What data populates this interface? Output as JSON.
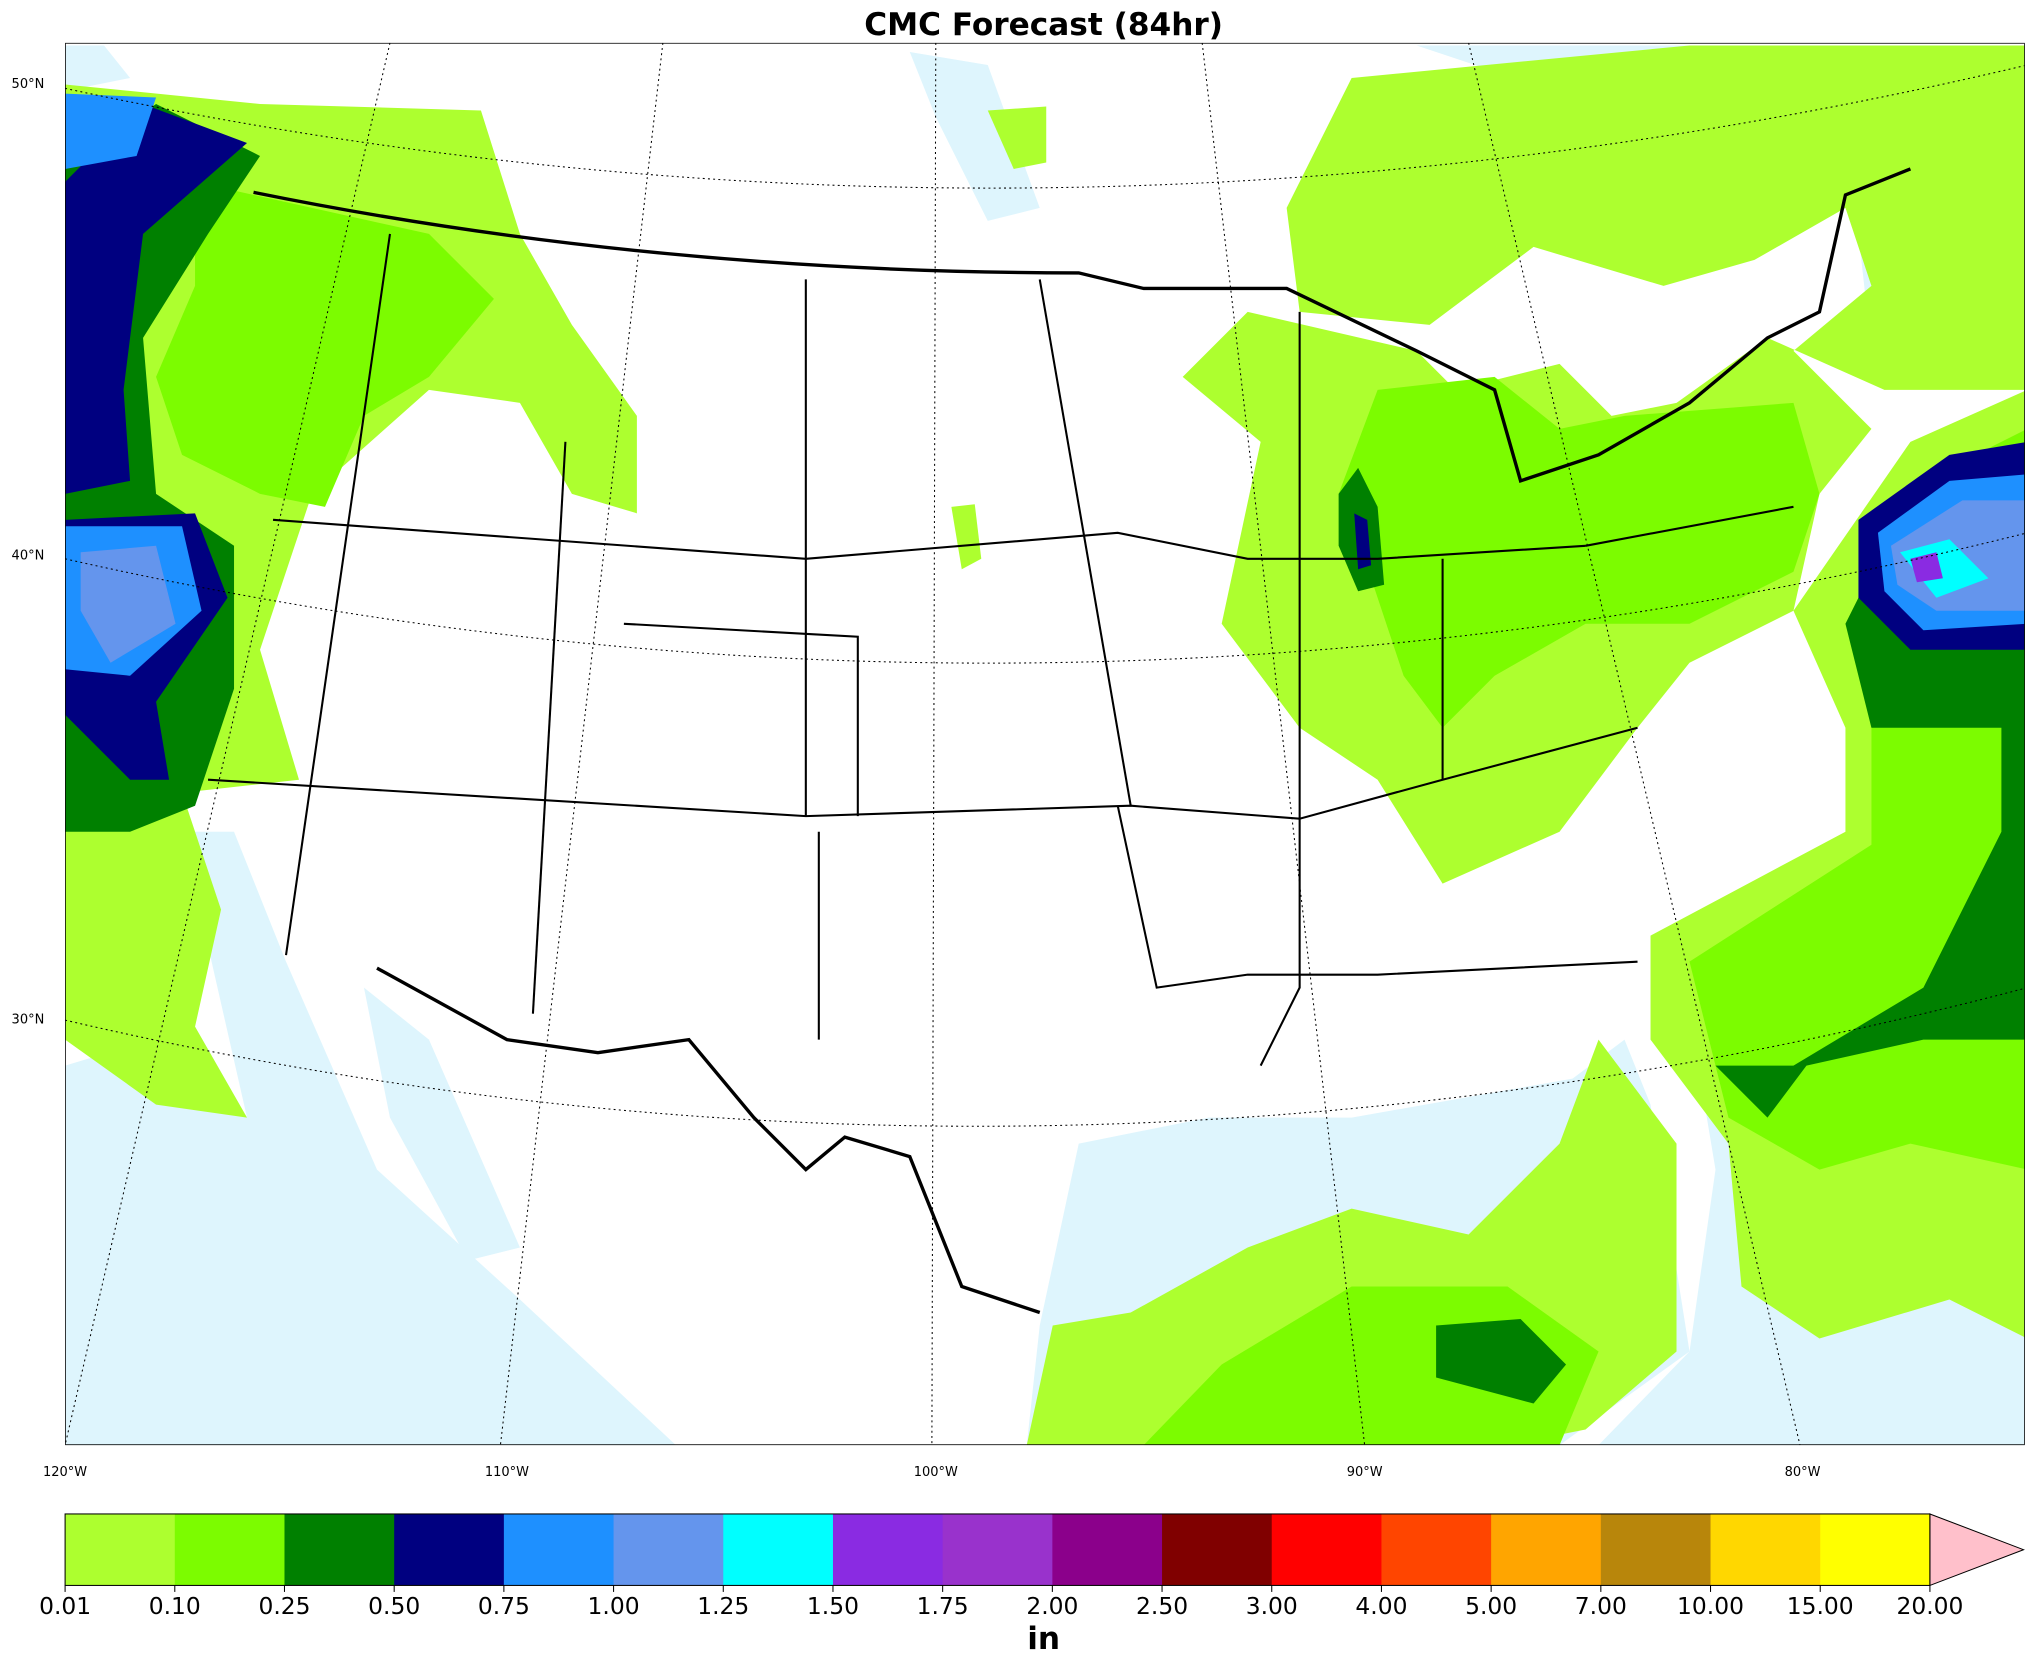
{
  "header": {
    "title": "CMC Forecast (84hr)"
  },
  "map": {
    "lat_labels": [
      "50°N",
      "40°N",
      "30°N"
    ],
    "lon_labels": [
      "120°W",
      "110°W",
      "100°W",
      "90°W",
      "80°W"
    ]
  },
  "colorbar": {
    "ticks": [
      "0.01",
      "0.10",
      "0.25",
      "0.50",
      "0.75",
      "1.00",
      "1.25",
      "1.50",
      "1.75",
      "2.00",
      "2.50",
      "3.00",
      "4.00",
      "5.00",
      "7.00",
      "10.00",
      "15.00",
      "20.00"
    ],
    "colors": [
      "#adff2f",
      "#7cfc00",
      "#008000",
      "#000080",
      "#1e90ff",
      "#6495ed",
      "#00ffff",
      "#8a2be2",
      "#9932cc",
      "#8b008b",
      "#800000",
      "#ff0000",
      "#ff4500",
      "#ffa500",
      "#b8860b",
      "#ffd700",
      "#ffff00"
    ],
    "extend_color": "#ffc0cb",
    "label": "in"
  }
}
